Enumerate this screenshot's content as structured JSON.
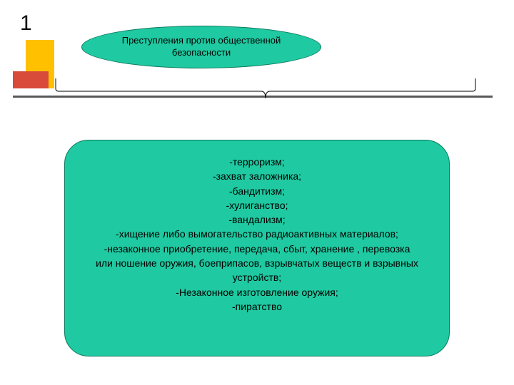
{
  "slide": {
    "number": "1",
    "background_color": "#ffffff"
  },
  "decorations": {
    "yellow_block": "#ffc000",
    "red_block": "#d84a3a",
    "gray_line": "#595959"
  },
  "header": {
    "text": "Преступления против общественной безопасности",
    "fill": "#1fc9a1",
    "border": "#0d7a5f",
    "fontsize": 13,
    "text_color": "#000000"
  },
  "bracket": {
    "stroke": "#000000",
    "stroke_width": 1
  },
  "content": {
    "fill": "#1fc9a1",
    "border": "#0d7a5f",
    "border_radius": 34,
    "fontsize": 14,
    "text_color": "#000000",
    "items": [
      "-терроризм;",
      "-захват заложника;",
      "-бандитизм;",
      "-хулиганство;",
      "-вандализм;",
      "-хищение либо вымогательство радиоактивных материалов;",
      "-незаконное приобретение, передача, сбыт, хранение , перевозка",
      "или ношение оружия, боеприпасов, взрывчатых веществ и взрывных",
      "устройств;",
      "-Незаконное изготовление оружия;",
      "-пиратство"
    ]
  }
}
